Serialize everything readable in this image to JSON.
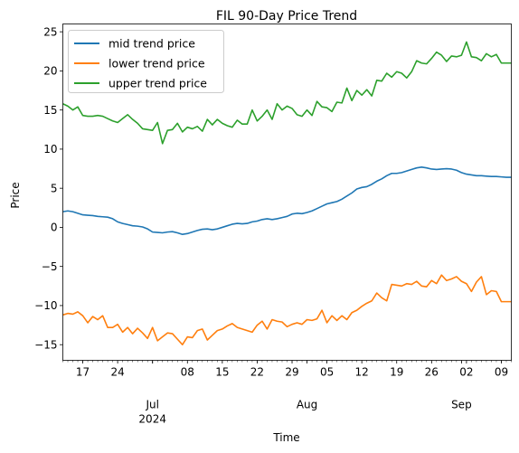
{
  "chart_data": {
    "type": "line",
    "title": "FIL 90-Day Price Trend",
    "xlabel": "Time",
    "ylabel": "Price",
    "xlim": [
      "2024-06-13",
      "2024-09-11"
    ],
    "ylim": [
      -17,
      26
    ],
    "grid": false,
    "legend_position": "top-left",
    "y_ticks": [
      "−15",
      "−10",
      "−5",
      "0",
      "5",
      "10",
      "15",
      "20",
      "25"
    ],
    "x_ticks": [
      "17",
      "24",
      "08",
      "15",
      "22",
      "29",
      "05",
      "12",
      "19",
      "26",
      "02",
      "09"
    ],
    "x_month_labels": [
      "Jul",
      "Aug",
      "Sep"
    ],
    "x_year_label": "2024",
    "x": [
      "2024-06-13",
      "2024-06-14",
      "2024-06-15",
      "2024-06-16",
      "2024-06-17",
      "2024-06-18",
      "2024-06-19",
      "2024-06-20",
      "2024-06-21",
      "2024-06-22",
      "2024-06-23",
      "2024-06-24",
      "2024-06-25",
      "2024-06-26",
      "2024-06-27",
      "2024-06-28",
      "2024-06-29",
      "2024-06-30",
      "2024-07-01",
      "2024-07-02",
      "2024-07-03",
      "2024-07-04",
      "2024-07-05",
      "2024-07-06",
      "2024-07-07",
      "2024-07-08",
      "2024-07-09",
      "2024-07-10",
      "2024-07-11",
      "2024-07-12",
      "2024-07-13",
      "2024-07-14",
      "2024-07-15",
      "2024-07-16",
      "2024-07-17",
      "2024-07-18",
      "2024-07-19",
      "2024-07-20",
      "2024-07-21",
      "2024-07-22",
      "2024-07-23",
      "2024-07-24",
      "2024-07-25",
      "2024-07-26",
      "2024-07-27",
      "2024-07-28",
      "2024-07-29",
      "2024-07-30",
      "2024-07-31",
      "2024-08-01",
      "2024-08-02",
      "2024-08-03",
      "2024-08-04",
      "2024-08-05",
      "2024-08-06",
      "2024-08-07",
      "2024-08-08",
      "2024-08-09",
      "2024-08-10",
      "2024-08-11",
      "2024-08-12",
      "2024-08-13",
      "2024-08-14",
      "2024-08-15",
      "2024-08-16",
      "2024-08-17",
      "2024-08-18",
      "2024-08-19",
      "2024-08-20",
      "2024-08-21",
      "2024-08-22",
      "2024-08-23",
      "2024-08-24",
      "2024-08-25",
      "2024-08-26",
      "2024-08-27",
      "2024-08-28",
      "2024-08-29",
      "2024-08-30",
      "2024-08-31",
      "2024-09-01",
      "2024-09-02",
      "2024-09-03",
      "2024-09-04",
      "2024-09-05",
      "2024-09-06",
      "2024-09-07",
      "2024-09-08",
      "2024-09-09",
      "2024-09-10",
      "2024-09-11"
    ],
    "series": [
      {
        "name": "mid trend price",
        "color": "#1f77b4",
        "values": [
          2.0,
          2.1,
          2.0,
          1.8,
          1.6,
          1.55,
          1.5,
          1.4,
          1.35,
          1.3,
          1.1,
          0.7,
          0.5,
          0.35,
          0.2,
          0.15,
          0.05,
          -0.2,
          -0.6,
          -0.65,
          -0.7,
          -0.6,
          -0.55,
          -0.7,
          -0.9,
          -0.8,
          -0.6,
          -0.4,
          -0.25,
          -0.2,
          -0.3,
          -0.2,
          0.0,
          0.2,
          0.4,
          0.5,
          0.45,
          0.5,
          0.7,
          0.8,
          1.0,
          1.1,
          1.0,
          1.1,
          1.25,
          1.4,
          1.7,
          1.8,
          1.75,
          1.9,
          2.1,
          2.4,
          2.7,
          3.0,
          3.15,
          3.3,
          3.6,
          4.0,
          4.4,
          4.9,
          5.1,
          5.2,
          5.5,
          5.9,
          6.2,
          6.6,
          6.9,
          6.9,
          7.0,
          7.2,
          7.4,
          7.6,
          7.7,
          7.6,
          7.45,
          7.4,
          7.45,
          7.5,
          7.45,
          7.3,
          7.0,
          6.8,
          6.7,
          6.6,
          6.6,
          6.55,
          6.5,
          6.5,
          6.45,
          6.4,
          6.4
        ]
      },
      {
        "name": "lower trend price",
        "color": "#ff7f0e",
        "values": [
          -11.2,
          -11.0,
          -11.1,
          -10.8,
          -11.3,
          -12.2,
          -11.4,
          -11.8,
          -11.3,
          -12.8,
          -12.8,
          -12.4,
          -13.4,
          -12.8,
          -13.6,
          -12.9,
          -13.5,
          -14.2,
          -12.8,
          -14.5,
          -14.0,
          -13.5,
          -13.6,
          -14.3,
          -15.0,
          -14.0,
          -14.1,
          -13.2,
          -13.0,
          -14.4,
          -13.8,
          -13.2,
          -13.0,
          -12.6,
          -12.3,
          -12.8,
          -13.0,
          -13.2,
          -13.4,
          -12.5,
          -12.0,
          -13.0,
          -11.8,
          -12.0,
          -12.1,
          -12.7,
          -12.4,
          -12.2,
          -12.4,
          -11.8,
          -11.9,
          -11.7,
          -10.6,
          -12.2,
          -11.3,
          -11.9,
          -11.3,
          -11.8,
          -10.9,
          -10.6,
          -10.1,
          -9.7,
          -9.4,
          -8.4,
          -9.0,
          -9.4,
          -7.3,
          -7.4,
          -7.5,
          -7.2,
          -7.3,
          -6.9,
          -7.5,
          -7.6,
          -6.8,
          -7.2,
          -6.1,
          -6.8,
          -6.6,
          -6.3,
          -6.9,
          -7.2,
          -8.2,
          -7.0,
          -6.3,
          -8.6,
          -8.1,
          -8.2,
          -9.5,
          -9.5,
          -9.5
        ]
      },
      {
        "name": "upper trend price",
        "color": "#2ca02c",
        "values": [
          15.8,
          15.5,
          15.0,
          15.4,
          14.3,
          14.2,
          14.2,
          14.3,
          14.2,
          13.9,
          13.6,
          13.4,
          13.9,
          14.4,
          13.8,
          13.3,
          12.6,
          12.5,
          12.4,
          13.4,
          10.7,
          12.4,
          12.5,
          13.3,
          12.2,
          12.8,
          12.6,
          12.9,
          12.3,
          13.8,
          13.1,
          13.8,
          13.3,
          13.0,
          12.8,
          13.7,
          13.2,
          13.2,
          15.0,
          13.6,
          14.2,
          15.0,
          13.8,
          15.8,
          15.0,
          15.5,
          15.2,
          14.4,
          14.2,
          15.0,
          14.3,
          16.1,
          15.4,
          15.3,
          14.8,
          16.0,
          15.9,
          17.8,
          16.2,
          17.5,
          16.9,
          17.6,
          16.8,
          18.8,
          18.7,
          19.7,
          19.2,
          19.9,
          19.7,
          19.1,
          19.9,
          21.3,
          21.0,
          20.9,
          21.6,
          22.4,
          22.0,
          21.2,
          21.9,
          21.8,
          22.0,
          23.7,
          21.8,
          21.7,
          21.3,
          22.2,
          21.8,
          22.1,
          21.0,
          21.0,
          21.0
        ]
      }
    ]
  }
}
